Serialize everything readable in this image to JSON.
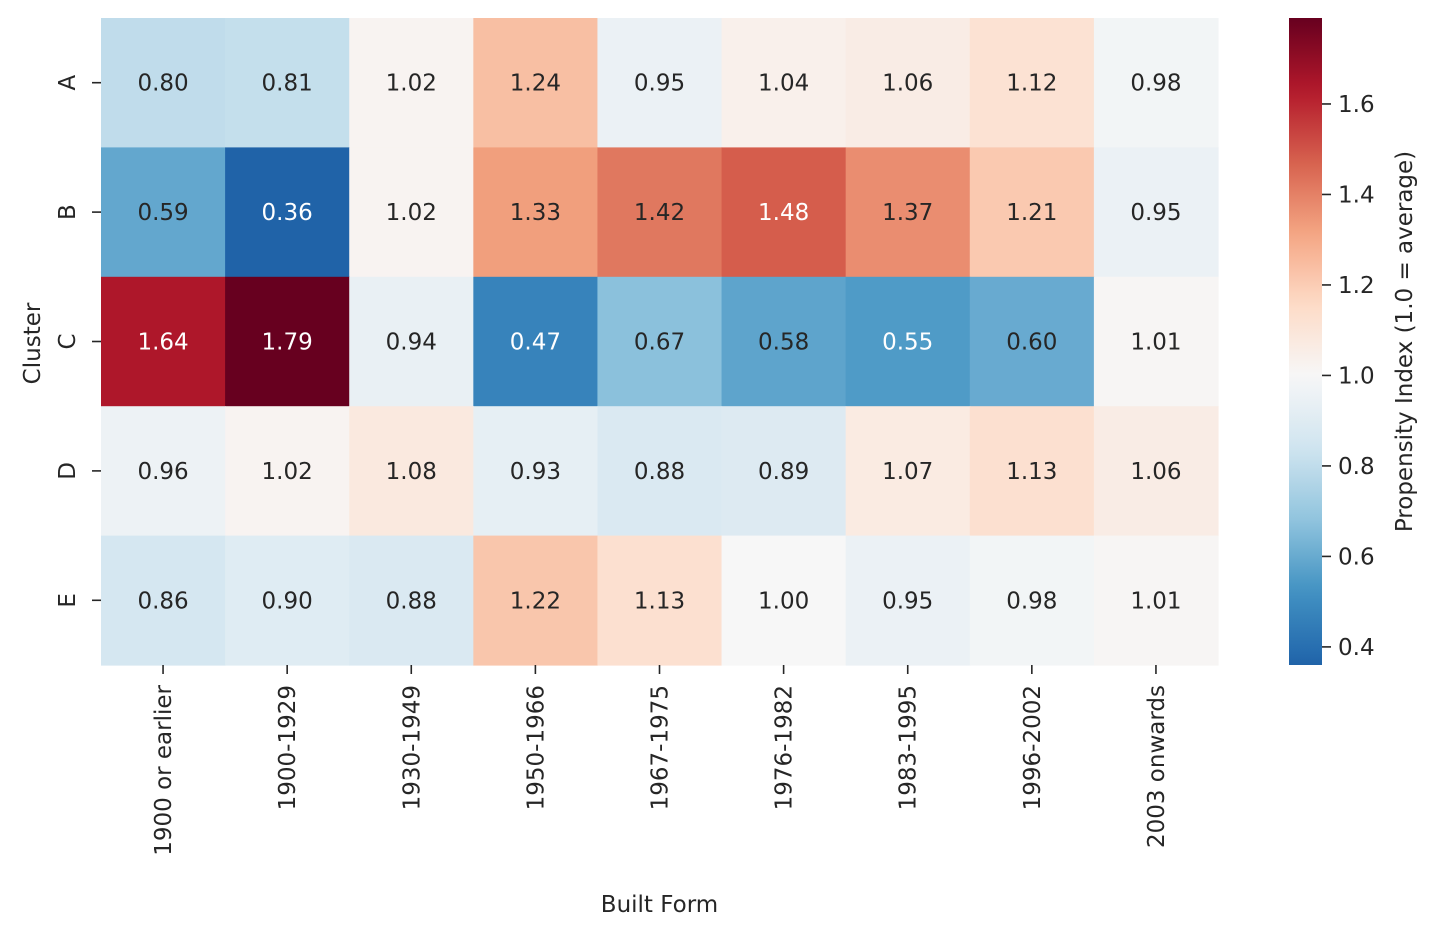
{
  "chart_data": {
    "type": "heatmap",
    "title": "",
    "xlabel": "Built Form",
    "ylabel": "Cluster",
    "colorbar_label": "Propensity Index (1.0 = average)",
    "colormap": "RdBu_r",
    "color_range": [
      0.36,
      1.79
    ],
    "colorbar_ticks": [
      0.4,
      0.6,
      0.8,
      1.0,
      1.2,
      1.4,
      1.6
    ],
    "colorbar_tick_labels": [
      "0.4",
      "0.6",
      "0.8",
      "1.0",
      "1.2",
      "1.4",
      "1.6"
    ],
    "x_categories": [
      "1900 or earlier",
      "1900-1929",
      "1930-1949",
      "1950-1966",
      "1967-1975",
      "1976-1982",
      "1983-1995",
      "1996-2002",
      "2003 onwards"
    ],
    "y_categories": [
      "A",
      "B",
      "C",
      "D",
      "E"
    ],
    "values": [
      [
        0.8,
        0.81,
        1.02,
        1.24,
        0.95,
        1.04,
        1.06,
        1.12,
        0.98
      ],
      [
        0.59,
        0.36,
        1.02,
        1.33,
        1.42,
        1.48,
        1.37,
        1.21,
        0.95
      ],
      [
        1.64,
        1.79,
        0.94,
        0.47,
        0.67,
        0.58,
        0.55,
        0.6,
        1.01
      ],
      [
        0.96,
        1.02,
        1.08,
        0.93,
        0.88,
        0.89,
        1.07,
        1.13,
        1.06
      ],
      [
        0.86,
        0.9,
        0.88,
        1.22,
        1.13,
        1.0,
        0.95,
        0.98,
        1.01
      ]
    ],
    "value_labels": [
      [
        "0.80",
        "0.81",
        "1.02",
        "1.24",
        "0.95",
        "1.04",
        "1.06",
        "1.12",
        "0.98"
      ],
      [
        "0.59",
        "0.36",
        "1.02",
        "1.33",
        "1.42",
        "1.48",
        "1.37",
        "1.21",
        "0.95"
      ],
      [
        "1.64",
        "1.79",
        "0.94",
        "0.47",
        "0.67",
        "0.58",
        "0.55",
        "0.60",
        "1.01"
      ],
      [
        "0.96",
        "1.02",
        "1.08",
        "0.93",
        "0.88",
        "0.89",
        "1.07",
        "1.13",
        "1.06"
      ],
      [
        "0.86",
        "0.90",
        "0.88",
        "1.22",
        "1.13",
        "1.00",
        "0.95",
        "0.98",
        "1.01"
      ]
    ]
  }
}
